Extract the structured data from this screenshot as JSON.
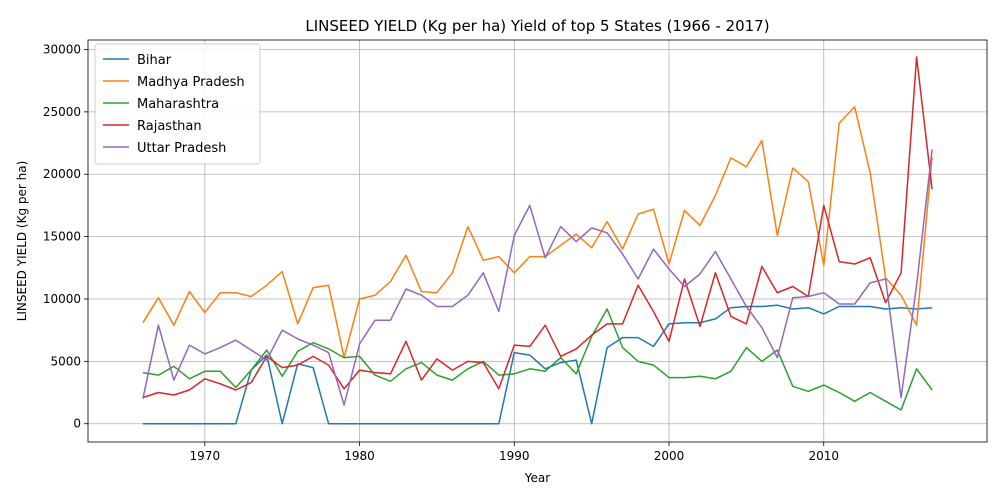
{
  "chart_data": {
    "type": "line",
    "title": "LINSEED YIELD (Kg per ha) Yield of top 5 States (1966 - 2017)",
    "xlabel": "Year",
    "ylabel": "LINSEED YIELD (Kg per ha)",
    "xlim": [
      1962.45,
      2020.55
    ],
    "ylim": [
      -1465,
      30760
    ],
    "xticks": [
      1970,
      1980,
      1990,
      2000,
      2010
    ],
    "yticks": [
      0,
      5000,
      10000,
      15000,
      20000,
      25000,
      30000
    ],
    "xtick_labels": [
      "1970",
      "1980",
      "1990",
      "2000",
      "2010"
    ],
    "ytick_labels": [
      "0",
      "5000",
      "10000",
      "15000",
      "20000",
      "25000",
      "30000"
    ],
    "grid": true,
    "legend_position": "top-left",
    "x": [
      1966,
      1967,
      1968,
      1969,
      1970,
      1971,
      1972,
      1973,
      1974,
      1975,
      1976,
      1977,
      1978,
      1979,
      1980,
      1981,
      1982,
      1983,
      1984,
      1985,
      1986,
      1987,
      1988,
      1989,
      1990,
      1991,
      1992,
      1993,
      1994,
      1995,
      1996,
      1997,
      1998,
      1999,
      2000,
      2001,
      2002,
      2003,
      2004,
      2005,
      2006,
      2007,
      2008,
      2009,
      2010,
      2011,
      2012,
      2013,
      2014,
      2015,
      2016,
      2017
    ],
    "series": [
      {
        "name": "Bihar",
        "color": "#1f77b4",
        "values": [
          0,
          0,
          0,
          0,
          0,
          0,
          0,
          4300,
          5500,
          0,
          4800,
          4500,
          0,
          0,
          0,
          0,
          0,
          0,
          0,
          0,
          0,
          0,
          0,
          0,
          5700,
          5500,
          4400,
          4900,
          5100,
          0,
          6100,
          6900,
          6900,
          6200,
          8000,
          8100,
          8100,
          8400,
          9300,
          9400,
          9400,
          9500,
          9200,
          9300,
          8800,
          9400,
          9400,
          9400,
          9200,
          9300,
          9200,
          9300
        ]
      },
      {
        "name": "Madhya Pradesh",
        "color": "#ff7f0e",
        "values": [
          8100,
          10100,
          7900,
          10600,
          8900,
          10500,
          10500,
          10200,
          11100,
          12200,
          8000,
          10900,
          11100,
          5300,
          10000,
          10300,
          11400,
          13500,
          10600,
          10500,
          12100,
          15800,
          13100,
          13400,
          12100,
          13400,
          13400,
          14300,
          15200,
          14100,
          16200,
          14000,
          16800,
          17200,
          12800,
          17100,
          15900,
          18300,
          21300,
          20600,
          22700,
          15100,
          20500,
          19400,
          12700,
          24100,
          25400,
          20100,
          11700,
          10300,
          7900,
          21400
        ]
      },
      {
        "name": "Maharashtra",
        "color": "#2ca02c",
        "values": [
          4100,
          3900,
          4600,
          3600,
          4200,
          4200,
          2900,
          4300,
          5900,
          3800,
          5800,
          6500,
          6000,
          5300,
          5400,
          3900,
          3400,
          4400,
          4900,
          3900,
          3500,
          4400,
          5000,
          3900,
          4000,
          4400,
          4200,
          5300,
          4000,
          7000,
          9200,
          6100,
          5000,
          4700,
          3700,
          3700,
          3800,
          3600,
          4200,
          6100,
          5000,
          5900,
          3000,
          2600,
          3100,
          2500,
          1800,
          2500,
          1800,
          1100,
          4400,
          2700
        ]
      },
      {
        "name": "Rajasthan",
        "color": "#d62728",
        "values": [
          2100,
          2500,
          2300,
          2700,
          3600,
          3200,
          2700,
          3300,
          5400,
          4500,
          4700,
          5400,
          4700,
          2800,
          4300,
          4100,
          4000,
          6600,
          3500,
          5200,
          4300,
          5000,
          4900,
          2800,
          6300,
          6200,
          7900,
          5400,
          6000,
          7100,
          8000,
          8000,
          11100,
          9000,
          6600,
          11600,
          7800,
          12100,
          8600,
          8000,
          12600,
          10500,
          11000,
          10200,
          17500,
          13000,
          12800,
          13300,
          9700,
          12100,
          29400,
          18800
        ]
      },
      {
        "name": "Uttar Pradesh",
        "color": "#9467bd",
        "values": [
          2000,
          7900,
          3500,
          6300,
          5600,
          6100,
          6700,
          5900,
          5100,
          7500,
          6800,
          6300,
          5700,
          1500,
          6400,
          8300,
          8300,
          10800,
          10300,
          9400,
          9400,
          10300,
          12100,
          9000,
          15100,
          17500,
          13300,
          15800,
          14600,
          15700,
          15300,
          13600,
          11600,
          14000,
          12400,
          11000,
          12000,
          13800,
          11600,
          9400,
          7700,
          5300,
          10100,
          10200,
          10500,
          9600,
          9600,
          11300,
          11600,
          2100,
          11100,
          22000
        ]
      }
    ]
  }
}
